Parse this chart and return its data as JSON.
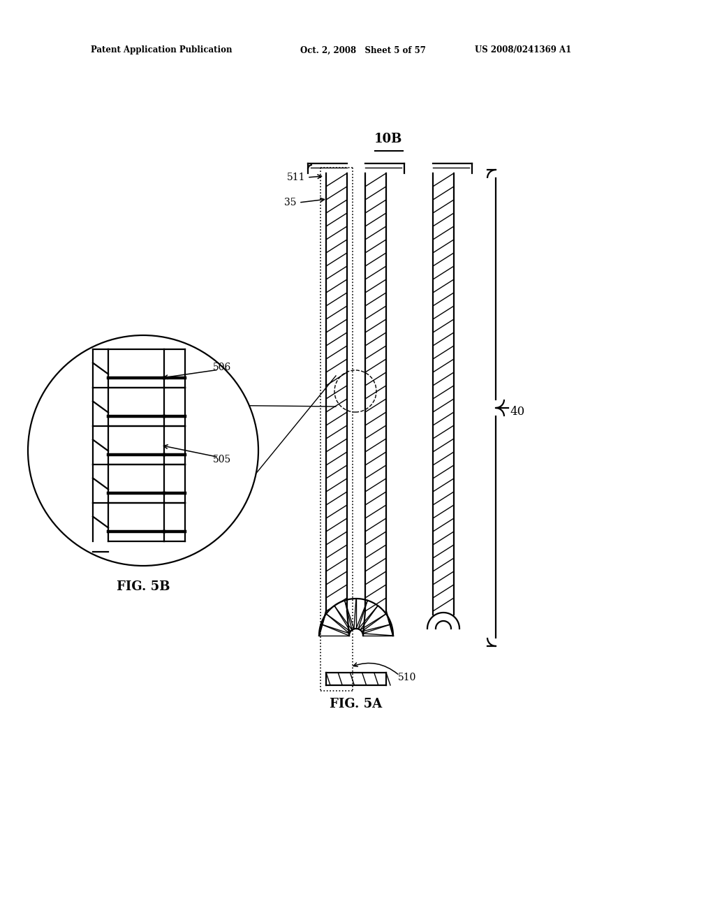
{
  "bg_color": "#ffffff",
  "header_left": "Patent Application Publication",
  "header_mid": "Oct. 2, 2008   Sheet 5 of 57",
  "header_right": "US 2008/0241369 A1",
  "label_10B": "10B",
  "label_511": "511",
  "label_35": "35",
  "label_506": "506",
  "label_505": "505",
  "label_40": "40",
  "label_510": "510",
  "fig5a": "FIG. 5A",
  "fig5b": "FIG. 5B",
  "line_color": "#000000",
  "lw_main": 1.6,
  "lw_thin": 1.0,
  "lw_thick": 3.2
}
